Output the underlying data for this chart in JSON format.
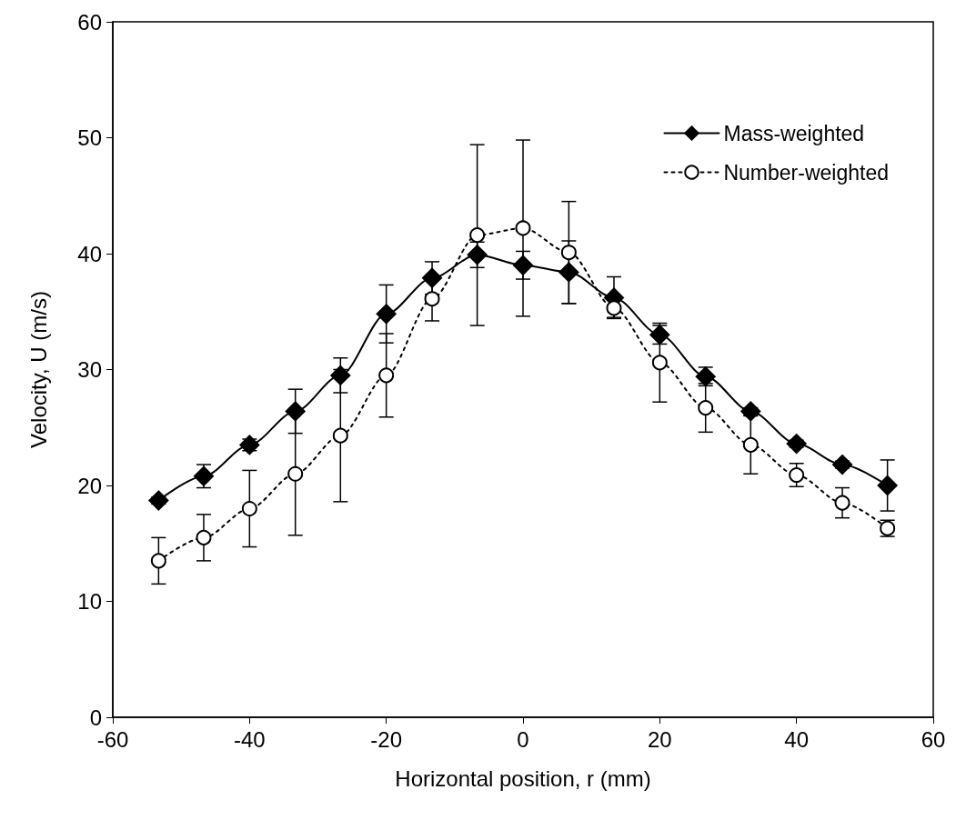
{
  "chart_data": {
    "type": "line",
    "xlabel": "Horizontal position, r (mm)",
    "ylabel": "Velocity, U (m/s)",
    "x": [
      -53.3,
      -46.7,
      -40,
      -33.3,
      -26.7,
      -20,
      -13.3,
      -6.7,
      0,
      6.7,
      13.3,
      20,
      26.7,
      33.3,
      40,
      46.7,
      53.3
    ],
    "series": [
      {
        "name": "Mass-weighted",
        "color": "#000000",
        "marker": "diamond",
        "line_style": "solid",
        "values": [
          18.7,
          20.8,
          23.5,
          26.4,
          29.5,
          34.8,
          37.9,
          39.9,
          39.0,
          38.4,
          36.2,
          33.0,
          29.4,
          26.4,
          23.6,
          21.8,
          20.0
        ],
        "errors": [
          0.3,
          1,
          0.5,
          1.9,
          1.5,
          2.5,
          1.4,
          1.1,
          1.2,
          2.7,
          1.8,
          0.8,
          0.8,
          0.3,
          0.3,
          0.3,
          2.2
        ]
      },
      {
        "name": "Number-weighted",
        "color": "#000000",
        "marker": "circle",
        "line_style": "dotted",
        "values": [
          13.5,
          15.5,
          18.0,
          21.0,
          24.3,
          29.5,
          36.1,
          41.6,
          42.2,
          40.1,
          35.3,
          30.6,
          26.7,
          23.5,
          20.9,
          18.5,
          16.3
        ],
        "errors": [
          2,
          2,
          3.3,
          5.3,
          5.7,
          3.6,
          1.9,
          7.8,
          7.6,
          4.4,
          0.8,
          3.4,
          2.1,
          2.5,
          1,
          1.3,
          0.7
        ]
      }
    ],
    "xlim": [
      -60,
      60
    ],
    "xticks": [
      -60,
      -40,
      -20,
      0,
      20,
      40,
      60
    ],
    "ylim": [
      0,
      60
    ],
    "yticks": [
      0,
      10,
      20,
      30,
      40,
      50,
      60
    ],
    "legend": "top right"
  }
}
